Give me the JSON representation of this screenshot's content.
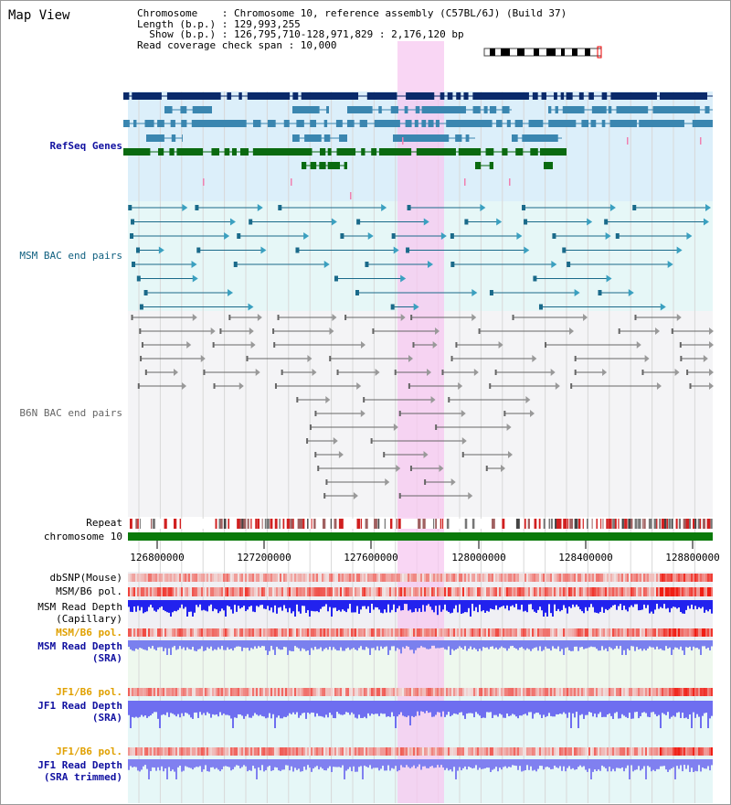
{
  "view_title": "Map View",
  "info": {
    "chromosome_line": "Chromosome    : Chromosome 10, reference assembly (C57BL/6J) (Build 37)",
    "length_line": "Length (b.p.) : 129,993,255",
    "show_line": "  Show (b.p.) : 126,795,710-128,971,829 : 2,176,120 bp",
    "coverage_line": "Read coverage check span : 10,000"
  },
  "tracks": {
    "refseq": "RefSeq Genes",
    "msm_bac": "MSM BAC end pairs",
    "b6n_bac": "B6N BAC end pairs",
    "repeat": "Repeat",
    "chromosome": "chromosome 10",
    "dbsnp": "dbSNP(Mouse)",
    "msm_b6_pol_1": "MSM/B6 pol.",
    "msm_read_depth_cap_1": "MSM Read Depth",
    "msm_read_depth_cap_2": "(Capillary)",
    "msm_b6_pol_2": "MSM/B6 pol.",
    "msm_read_depth_sra_1": "MSM Read Depth",
    "msm_read_depth_sra_2": "(SRA)",
    "jf1_b6_pol_1": "JF1/B6 pol.",
    "jf1_read_depth_sra_1": "JF1 Read Depth",
    "jf1_read_depth_sra_2": "(SRA)",
    "jf1_b6_pol_2": "JF1/B6 pol.",
    "jf1_read_depth_trim_1": "JF1 Read Depth",
    "jf1_read_depth_trim_2": "(SRA trimmed)"
  },
  "axis_ticks": [
    "126800000",
    "127200000",
    "127600000",
    "128000000",
    "128400000",
    "128800000"
  ],
  "colors": {
    "highlight": "#f7c8f0",
    "refseq_bg": "#dceffa",
    "bac_bg": "#e6f7f7",
    "gene_dark": "#0a2a6a",
    "gene_mid": "#3a86b0",
    "gene_green": "#0a6a10",
    "msm_pair": "#1a6a8a",
    "b6n_pair": "#666666",
    "chromosome_bar": "#0a7a0a",
    "depth_blue": "#2222ee",
    "depth_light": "#7777ee",
    "label_blue": "#1010a0",
    "label_orange": "#e0a000",
    "label_teal": "#106080"
  }
}
